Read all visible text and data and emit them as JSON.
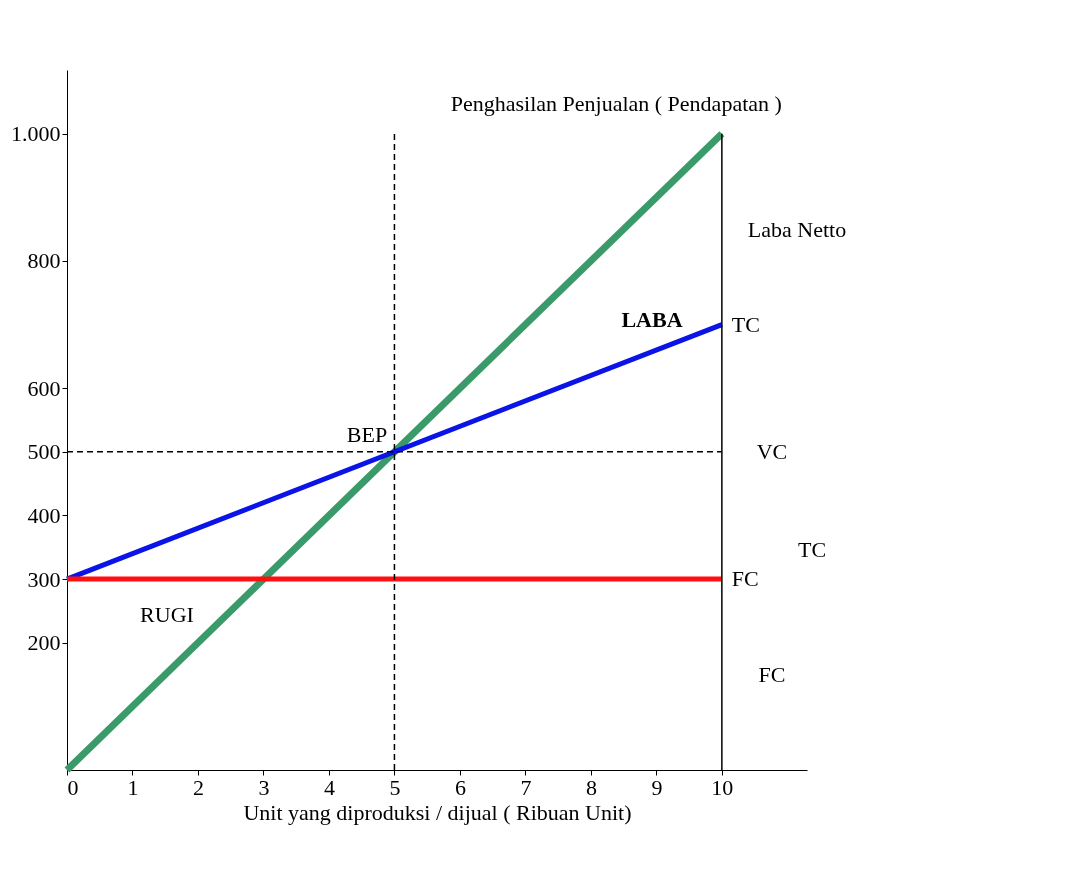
{
  "chart_data": {
    "type": "line",
    "xlabel": "Unit yang diproduksi / dijual ( Ribuan  Unit)",
    "x": [
      0,
      10
    ],
    "series": [
      {
        "name": "Penghasilan Penjualan ( Pendapatan )",
        "color": "#3a9a6a",
        "values": [
          0,
          1000
        ]
      },
      {
        "name": "TC",
        "color": "#0a14e6",
        "values": [
          300,
          700
        ]
      },
      {
        "name": "FC",
        "color": "#ff1010",
        "values": [
          300,
          300
        ]
      }
    ],
    "xlim": [
      0,
      11.3
    ],
    "xticks": [
      0,
      1,
      2,
      3,
      4,
      5,
      6,
      7,
      8,
      9,
      10
    ],
    "ylim": [
      0,
      1100
    ],
    "yticks": [
      200,
      300,
      400,
      500,
      600,
      800,
      {
        "value": 1000,
        "label": "1.000"
      }
    ],
    "grid": false,
    "legend": false,
    "marker": "none",
    "line_style": "solid",
    "ref_lines": [
      {
        "axis": "x",
        "value": 5,
        "label": null,
        "line_style": "dashed",
        "color": "#000000"
      },
      {
        "axis": "y",
        "value": 500,
        "label": null,
        "line_style": "dashed",
        "color": "#000000"
      },
      {
        "axis": "x",
        "value": 10,
        "label": null,
        "line_style": "solid",
        "color": "#000000"
      }
    ],
    "annotations": [
      "BEP",
      "LABA",
      "RUGI",
      "Laba Netto",
      "VC",
      "TC",
      "FC"
    ]
  }
}
